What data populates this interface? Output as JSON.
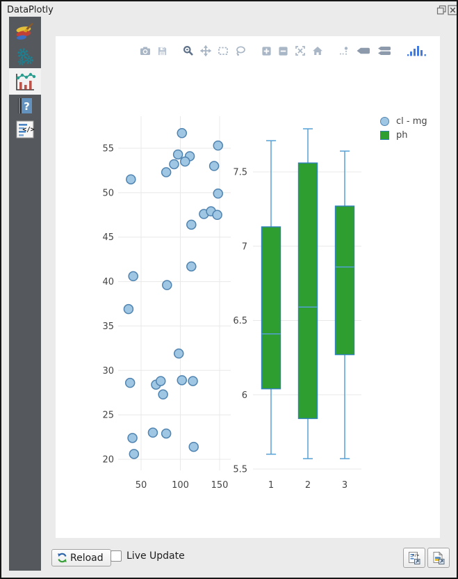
{
  "window": {
    "title": "DataPlotly"
  },
  "titlebar": {
    "buttons": [
      "float-window",
      "close-window"
    ]
  },
  "sidebar": {
    "items": [
      {
        "name": "plot-properties",
        "icon": "paintbrush-layers-icon",
        "selected": false
      },
      {
        "name": "plot-settings",
        "icon": "gears-icon",
        "selected": false
      },
      {
        "name": "plot-view",
        "icon": "chart-icon",
        "selected": true
      },
      {
        "name": "help",
        "icon": "help-book-icon",
        "selected": false
      },
      {
        "name": "code-view",
        "icon": "code-page-icon",
        "selected": false
      }
    ]
  },
  "modebar": {
    "icon_color": "#a9b6c6",
    "active_color": "#5e7189",
    "logo_color": "#447adb",
    "buttons": [
      {
        "name": "download-camera",
        "group": 1,
        "active": false
      },
      {
        "name": "save-disk",
        "group": 1,
        "active": false
      },
      {
        "name": "zoom",
        "group": 2,
        "active": true
      },
      {
        "name": "pan",
        "group": 2,
        "active": false
      },
      {
        "name": "box-select",
        "group": 2,
        "active": false
      },
      {
        "name": "lasso-select",
        "group": 2,
        "active": false
      },
      {
        "name": "zoom-in",
        "group": 3,
        "active": false
      },
      {
        "name": "zoom-out",
        "group": 3,
        "active": false
      },
      {
        "name": "autoscale",
        "group": 3,
        "active": false
      },
      {
        "name": "reset-axes-home",
        "group": 3,
        "active": false
      },
      {
        "name": "toggle-spike-lines",
        "group": 4,
        "active": false
      },
      {
        "name": "hover-closest",
        "group": 4,
        "active": false
      },
      {
        "name": "hover-compare",
        "group": 4,
        "active": false
      },
      {
        "name": "plotly-logo",
        "group": 5,
        "active": false
      }
    ]
  },
  "legend": {
    "entries": [
      {
        "label": "cl - mg",
        "symbol": "circle",
        "fill": "#9fc6e3",
        "stroke": "#4f83b0"
      },
      {
        "label": "ph",
        "symbol": "square",
        "fill": "#2e9e30",
        "stroke": "#2f81ba"
      }
    ]
  },
  "chart_data": [
    {
      "type": "scatter",
      "name": "cl - mg",
      "mode": "markers",
      "points": [
        [
          102,
          56.7
        ],
        [
          148,
          55.3
        ],
        [
          97,
          54.3
        ],
        [
          112,
          54.1
        ],
        [
          106,
          53.5
        ],
        [
          92,
          53.2
        ],
        [
          143,
          53.0
        ],
        [
          82,
          52.3
        ],
        [
          37,
          51.5
        ],
        [
          148,
          49.9
        ],
        [
          130,
          47.6
        ],
        [
          139,
          47.9
        ],
        [
          147,
          47.5
        ],
        [
          114,
          46.4
        ],
        [
          114,
          41.7
        ],
        [
          40,
          40.6
        ],
        [
          83,
          39.6
        ],
        [
          34,
          36.9
        ],
        [
          98,
          31.9
        ],
        [
          36,
          28.6
        ],
        [
          69,
          28.4
        ],
        [
          75,
          28.8
        ],
        [
          102,
          28.9
        ],
        [
          116,
          28.8
        ],
        [
          78,
          27.3
        ],
        [
          65,
          23.0
        ],
        [
          82,
          22.9
        ],
        [
          39,
          22.4
        ],
        [
          117,
          21.4
        ],
        [
          41,
          20.6
        ]
      ],
      "xticks": [
        50,
        100,
        150
      ],
      "yticks": [
        20,
        25,
        30,
        35,
        40,
        45,
        50,
        55
      ],
      "xlim": [
        21,
        164
      ],
      "ylim": [
        18.3,
        58.6
      ],
      "grid": true,
      "marker_fill": "#9fc6e3",
      "marker_stroke": "#4f83b0",
      "xlabel": "",
      "ylabel": ""
    },
    {
      "type": "box",
      "name": "ph",
      "categories": [
        "1",
        "2",
        "3"
      ],
      "boxes": [
        {
          "low": 5.6,
          "q1": 6.04,
          "median": 6.41,
          "q3": 7.13,
          "high": 7.71
        },
        {
          "low": 5.57,
          "q1": 5.84,
          "median": 6.59,
          "q3": 7.56,
          "high": 7.79
        },
        {
          "low": 5.57,
          "q1": 6.27,
          "median": 6.86,
          "q3": 7.27,
          "high": 7.64
        }
      ],
      "yticks": [
        5.5,
        6,
        6.5,
        7,
        7.5
      ],
      "ylim": [
        5.5,
        7.9
      ],
      "grid": true,
      "box_fill": "#2e9e30",
      "box_stroke": "#2f81ba",
      "whisker_color": "#55a0d6",
      "xlabel": "",
      "ylabel": ""
    }
  ],
  "plot_style": {
    "gridline_color": "#e8e8e8",
    "tick_label_color": "#444444",
    "background": "#ffffff"
  },
  "footer": {
    "reload_label": "Reload",
    "live_update_label": "Live Update",
    "live_update_checked": false,
    "buttons": [
      {
        "name": "export-to-html",
        "icon": "code-document-export-icon"
      },
      {
        "name": "export-as-image",
        "icon": "image-export-icon"
      }
    ]
  }
}
